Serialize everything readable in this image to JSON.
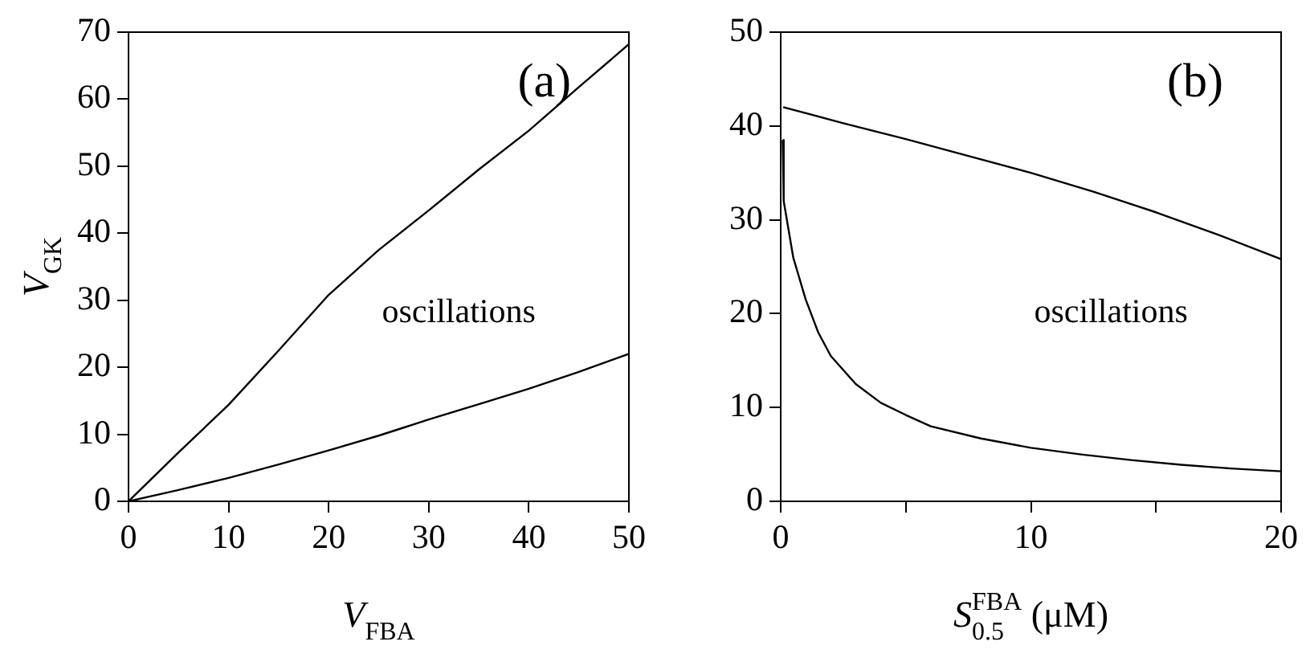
{
  "chart_data": [
    {
      "type": "line",
      "xlabel": "V$_{FBA}$",
      "ylabel": "V$_{GK}$",
      "annotations": [
        "(a)",
        "oscillations"
      ],
      "xlim": [
        0,
        50
      ],
      "ylim": [
        0,
        70
      ],
      "xticks": [
        0,
        10,
        20,
        30,
        40,
        50
      ],
      "yticks": [
        0,
        10,
        20,
        30,
        40,
        50,
        60,
        70
      ],
      "grid": false,
      "legend": false,
      "marker": "none",
      "line_style": "solid",
      "series": [
        {
          "color": "#000000",
          "x": [
            0,
            5,
            10,
            15,
            20,
            25,
            30,
            35,
            40,
            45,
            50
          ],
          "values": [
            0,
            7.3,
            14.4,
            22.5,
            30.8,
            37.5,
            43.4,
            49.5,
            55.3,
            61.8,
            68.2
          ]
        },
        {
          "color": "#000000",
          "x": [
            0,
            5,
            10,
            15,
            20,
            25,
            30,
            35,
            40,
            45,
            50
          ],
          "values": [
            0,
            1.7,
            3.5,
            5.5,
            7.6,
            9.8,
            12.2,
            14.5,
            16.8,
            19.3,
            22
          ]
        }
      ]
    },
    {
      "type": "line",
      "xlabel": "S$_{0.5}$$^{FBA}$ (μM)",
      "annotations": [
        "(b)",
        "oscillations"
      ],
      "xlim": [
        0,
        20
      ],
      "ylim": [
        0,
        50
      ],
      "xticks": [
        0,
        {
          "value": 5,
          "label": null
        },
        10,
        {
          "value": 15,
          "label": null
        },
        20
      ],
      "yticks": [
        0,
        10,
        20,
        30,
        40,
        50
      ],
      "grid": false,
      "legend": false,
      "marker": "none",
      "line_style": "solid",
      "series": [
        {
          "color": "#000000",
          "x": [
            0.1,
            2.5,
            5,
            7.5,
            10,
            12.5,
            15,
            17.5,
            20
          ],
          "values": [
            42,
            40.3,
            38.6,
            36.8,
            35,
            33,
            30.8,
            28.4,
            25.8
          ]
        },
        {
          "color": "#000000",
          "x": [
            0.08,
            0.12,
            0.5,
            1,
            1.5,
            2,
            3,
            4,
            5,
            6,
            8,
            10,
            12,
            14,
            16,
            18,
            20
          ],
          "values": [
            38.5,
            32,
            26,
            21.5,
            18,
            15.5,
            12.5,
            10.5,
            9.2,
            8,
            6.7,
            5.7,
            5,
            4.4,
            3.9,
            3.5,
            3.2
          ]
        }
      ]
    }
  ]
}
